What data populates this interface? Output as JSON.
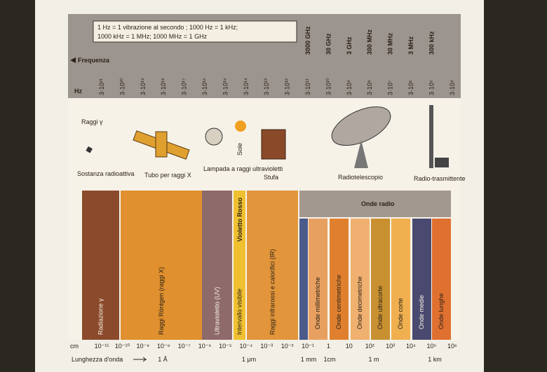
{
  "note": [
    "1 Hz = 1 vibrazione al secondo ; 1000 Hz = 1 kHz;",
    "1000 kHz = 1 MHz; 1000 MHz = 1 GHz"
  ],
  "frequency": {
    "label": "Frequenza",
    "unit": "Hz",
    "ticks": [
      "3·10²¹",
      "3·10²⁰",
      "3·10¹⁹",
      "3·10¹⁸",
      "3·10¹⁷",
      "3·10¹⁶",
      "3·10¹⁵",
      "3·10¹⁴",
      "3·10¹³",
      "3·10¹²",
      "3·10¹¹",
      "3·10¹⁰",
      "3·10⁹",
      "3·10⁸",
      "3·10⁷",
      "3·10⁶",
      "3·10⁵",
      "3·10⁴"
    ],
    "named": [
      "3000 GHz",
      "30 GHz",
      "3 GHz",
      "300 MHz",
      "30 MHz",
      "3 MHz",
      "300 kHz"
    ]
  },
  "illustrations": {
    "gamma": "Raggi γ",
    "source": "Sostanza radioattiva",
    "xray_tube": "Tubo per raggi X",
    "uv_lamp": "Lampada a raggi ultravioletti",
    "sun": "Sole",
    "stove": "Stufa",
    "radiotelescope": "Radiotelescopio",
    "transmitter": "Radio-trasmittente"
  },
  "bands": [
    "Radiazione γ",
    "Raggi Röntgen (raggi X)",
    "Ultravioletto (UV)",
    "Intervallo visibile",
    "Raggi infrarossi e calorifici (IR)"
  ],
  "visible_edges": "Violetto Rosso",
  "radio": {
    "label": "Onde radio",
    "bands": [
      "Onde millimetriche",
      "Onde centimetriche",
      "Onde decimetriche",
      "Onde ultracorte",
      "Onde corte",
      "Onde medie",
      "Onde lunghe"
    ]
  },
  "wavelength": {
    "unit": "cm",
    "label": "Lunghezza d'onda",
    "ticks": [
      "10⁻¹¹",
      "10⁻¹⁰",
      "10⁻⁹",
      "10⁻⁸",
      "10⁻⁷",
      "10⁻⁶",
      "10⁻⁵",
      "10⁻⁴",
      "10⁻³",
      "10⁻²",
      "10⁻¹",
      "1",
      "10",
      "10²",
      "10³",
      "10⁴",
      "10⁵",
      "10⁶"
    ],
    "named": [
      "1 Å",
      "1 μm",
      "1 mm",
      "1cm",
      "1 m",
      "1 km"
    ]
  }
}
